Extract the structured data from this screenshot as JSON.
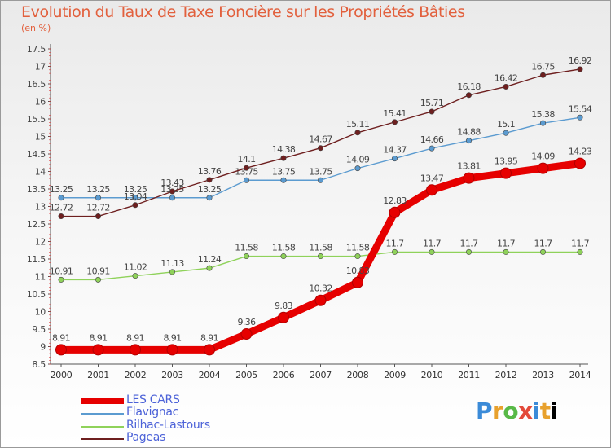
{
  "title": "Evolution du Taux de Taxe Foncière sur les Propriétés Bâties",
  "subtitle": "(en %)",
  "logo_text": "Proxiti",
  "chart_data": {
    "type": "line",
    "x": [
      "2000",
      "2001",
      "2002",
      "2003",
      "2004",
      "2005",
      "2006",
      "2007",
      "2008",
      "2009",
      "2010",
      "2011",
      "2012",
      "2013",
      "2014"
    ],
    "ylim": [
      8.5,
      17.5
    ],
    "yticks": [
      "8.5",
      "9",
      "9.5",
      "10",
      "10.5",
      "11",
      "11.5",
      "12",
      "12.5",
      "13",
      "13.5",
      "14",
      "14.5",
      "15",
      "15.5",
      "16",
      "16.5",
      "17",
      "17.5"
    ],
    "grid": false,
    "legend_position": "bottom-left",
    "series": [
      {
        "name": "LES CARS",
        "color": "#e60000",
        "values": [
          8.91,
          8.91,
          8.91,
          8.91,
          8.91,
          9.36,
          9.83,
          10.32,
          10.83,
          12.83,
          13.47,
          13.81,
          13.95,
          14.09,
          14.23
        ],
        "labels": [
          "8.91",
          "8.91",
          "8.91",
          "8.91",
          "8.91",
          "9.36",
          "9.83",
          "10.32",
          "10.83",
          "12.83",
          "13.47",
          "13.81",
          "13.95",
          "14.09",
          "14.23"
        ]
      },
      {
        "name": "Flavignac",
        "color": "#5b9bd0",
        "values": [
          13.25,
          13.25,
          13.25,
          13.25,
          13.25,
          13.75,
          13.75,
          13.75,
          14.09,
          14.37,
          14.66,
          14.88,
          15.1,
          15.38,
          15.54
        ],
        "labels": [
          "13.25",
          "13.25",
          "13.25",
          "13.25",
          "13.25",
          "13.75",
          "13.75",
          "13.75",
          "14.09",
          "14.37",
          "14.66",
          "14.88",
          "15.1",
          "15.38",
          "15.54"
        ]
      },
      {
        "name": "Rilhac-Lastours",
        "color": "#8fd25a",
        "values": [
          10.91,
          10.91,
          11.02,
          11.13,
          11.24,
          11.58,
          11.58,
          11.58,
          11.58,
          11.7,
          11.7,
          11.7,
          11.7,
          11.7,
          11.7
        ],
        "labels": [
          "10.91",
          "10.91",
          "11.02",
          "11.13",
          "11.24",
          "11.58",
          "11.58",
          "11.58",
          "11.58",
          "11.7",
          "11.7",
          "11.7",
          "11.7",
          "11.7",
          "11.7"
        ]
      },
      {
        "name": "Pageas",
        "color": "#6e1f1f",
        "values": [
          12.72,
          12.72,
          13.04,
          13.43,
          13.76,
          14.1,
          14.38,
          14.67,
          15.11,
          15.41,
          15.71,
          16.18,
          16.42,
          16.75,
          16.92
        ],
        "labels": [
          "12.72",
          "12.72",
          "13.04",
          "13.43",
          "13.76",
          "14.1",
          "14.38",
          "14.67",
          "15.11",
          "15.41",
          "15.71",
          "16.18",
          "16.42",
          "16.75",
          "16.92"
        ]
      }
    ]
  }
}
